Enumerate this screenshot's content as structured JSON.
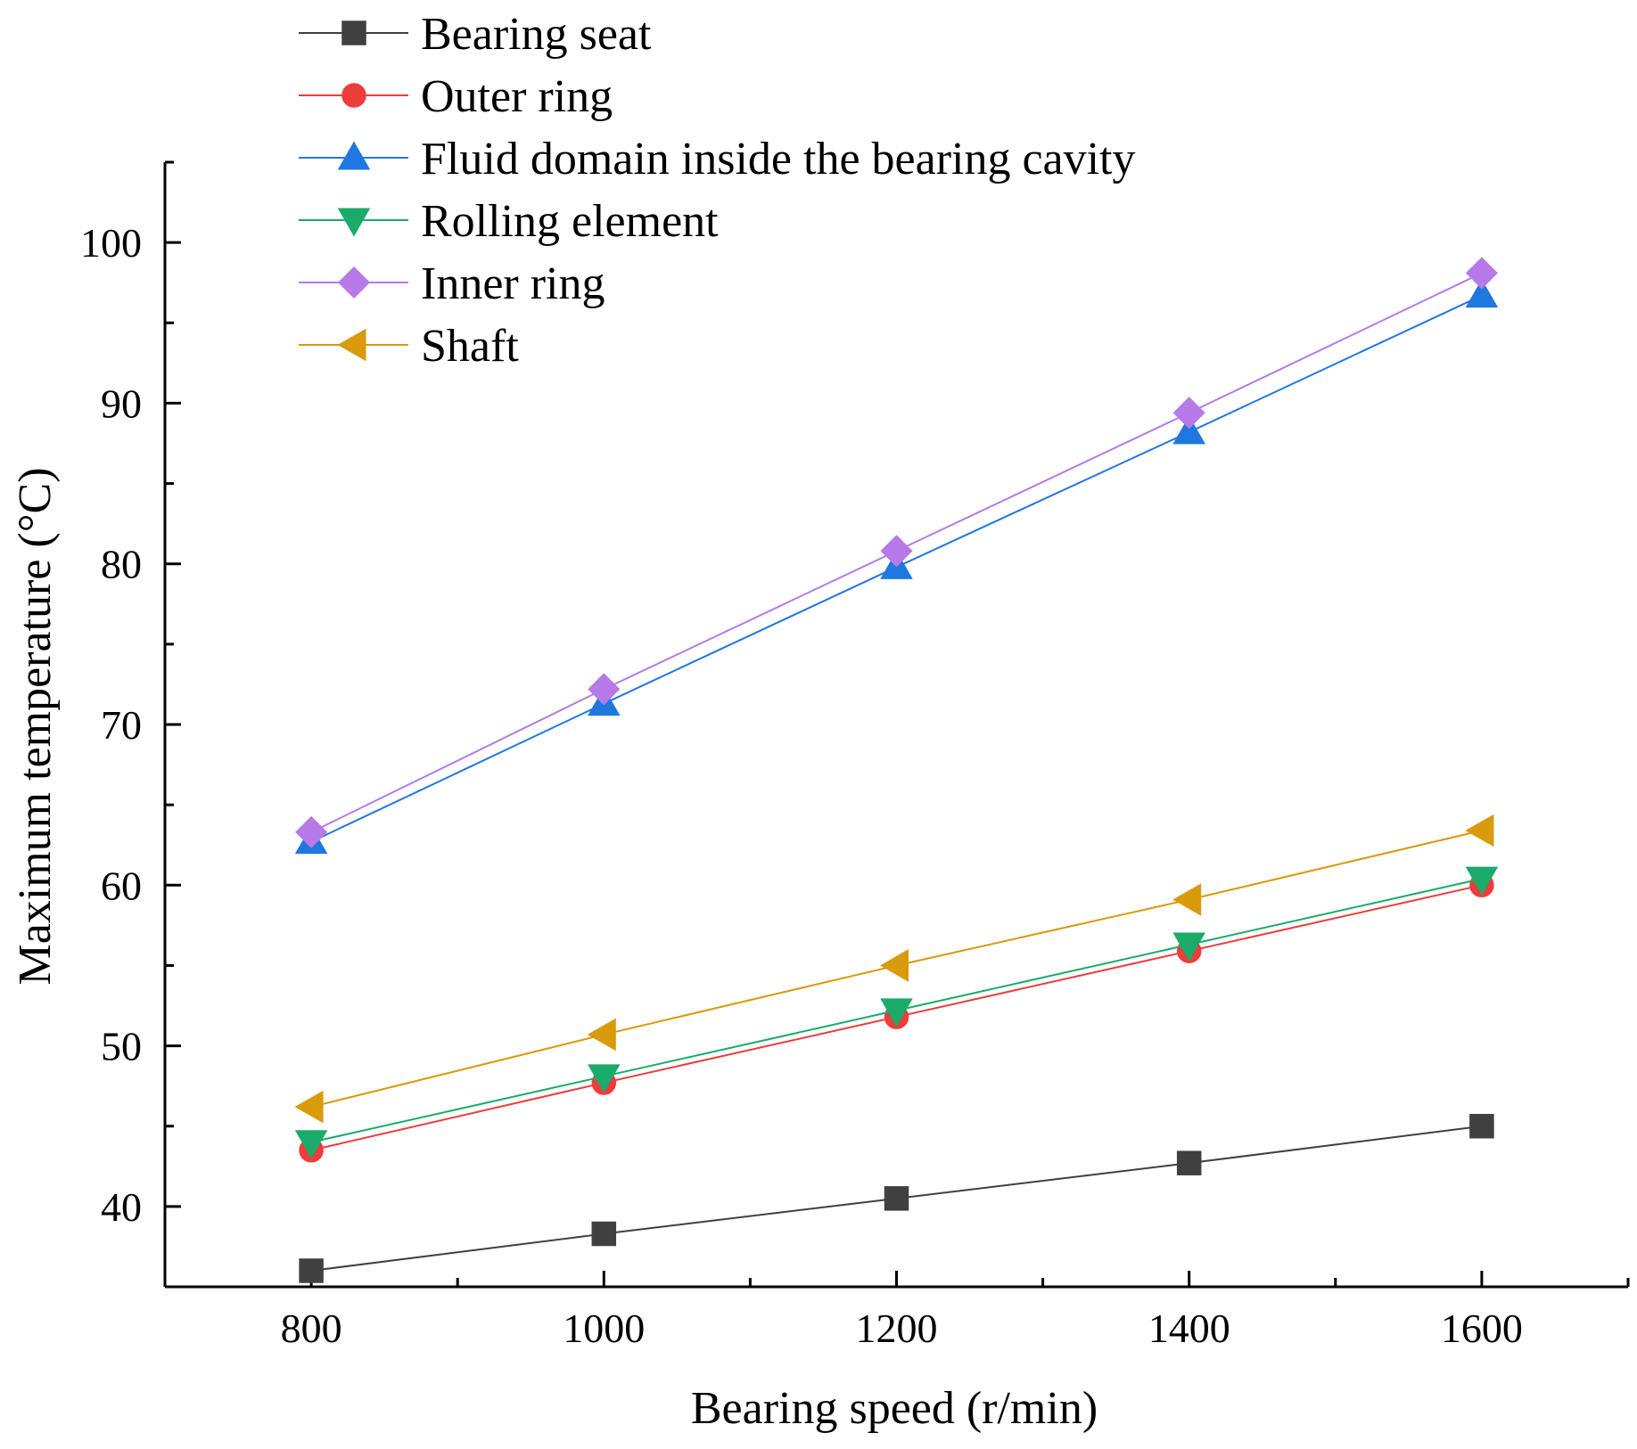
{
  "chart_data": {
    "type": "line",
    "title": "",
    "xlabel": "Bearing speed (r/min)",
    "ylabel": "Maximum temperature (°C)",
    "x": [
      800,
      1000,
      1200,
      1400,
      1600
    ],
    "xlim": [
      700,
      1700
    ],
    "ylim": [
      35,
      105
    ],
    "x_major_ticks": [
      800,
      1000,
      1200,
      1400,
      1600
    ],
    "x_minor_ticks": [
      900,
      1100,
      1300,
      1500,
      1700
    ],
    "x_tick_labels": [
      "800",
      "1000",
      "1200",
      "1400",
      "1600"
    ],
    "y_major_ticks": [
      40,
      50,
      60,
      70,
      80,
      90,
      100
    ],
    "y_minor_ticks": [
      45,
      55,
      65,
      75,
      85,
      95,
      105
    ],
    "y_tick_labels": [
      "40",
      "50",
      "60",
      "70",
      "80",
      "90",
      "100"
    ],
    "grid": false,
    "legend_position": "top-left",
    "series": [
      {
        "name": "Bearing seat",
        "color": "#404040",
        "marker": "square",
        "values": [
          36.0,
          38.3,
          40.5,
          42.7,
          45.0
        ]
      },
      {
        "name": "Outer ring",
        "color": "#ee3b3b",
        "marker": "circle",
        "values": [
          43.5,
          47.7,
          51.8,
          55.9,
          60.0
        ]
      },
      {
        "name": "Fluid domain inside the bearing cavity",
        "color": "#1f78e0",
        "marker": "triangle-up",
        "values": [
          62.7,
          71.3,
          79.8,
          88.2,
          96.7
        ]
      },
      {
        "name": "Rolling element",
        "color": "#1aab6b",
        "marker": "triangle-down",
        "values": [
          44.0,
          48.1,
          52.2,
          56.3,
          60.4
        ]
      },
      {
        "name": "Inner ring",
        "color": "#b77ae8",
        "marker": "diamond",
        "values": [
          63.3,
          72.2,
          80.8,
          89.4,
          98.1
        ]
      },
      {
        "name": "Shaft",
        "color": "#d99a0c",
        "marker": "triangle-left",
        "values": [
          46.2,
          50.7,
          55.0,
          59.1,
          63.4
        ]
      }
    ]
  }
}
